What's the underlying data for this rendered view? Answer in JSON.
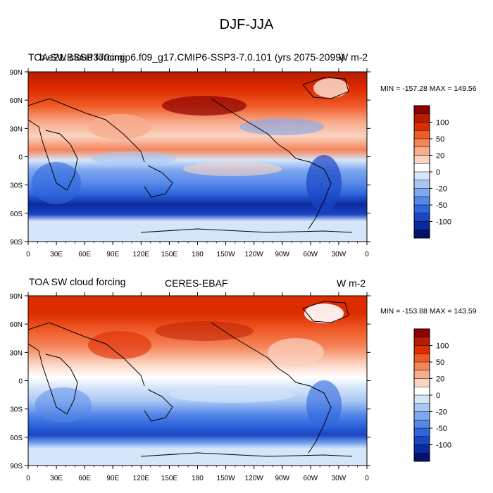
{
  "figure": {
    "title": "DJF-JJA"
  },
  "panels": [
    {
      "left_title": "TOA SW cloud forcing",
      "center_title": "b.e21.BSSP370cmip6.f09_g17.CMIP6-SSP3-7.0.101 (yrs 2075-2099)",
      "right_title": "W m-2",
      "minmax": "MIN = -157.28 MAX = 149.56"
    },
    {
      "left_title": "TOA SW cloud forcing",
      "center_title": "CERES-EBAF",
      "right_title": "W m-2",
      "minmax": "MIN = -153.88 MAX = 143.59"
    }
  ],
  "axes": {
    "lon_labels": [
      "0",
      "30E",
      "60E",
      "90E",
      "120E",
      "150E",
      "180",
      "150W",
      "120W",
      "90W",
      "60W",
      "30W",
      "0"
    ],
    "lat_labels": [
      "90N",
      "60N",
      "30N",
      "0",
      "30S",
      "60S",
      "90S"
    ]
  },
  "colorbar": {
    "tick_labels": [
      "100",
      "50",
      "20",
      "0",
      "-20",
      "-50",
      "-100"
    ],
    "colors": [
      "#8b0000",
      "#b71c00",
      "#dd2c00",
      "#ef5a26",
      "#f4855b",
      "#f8ad8e",
      "#fbd3c1",
      "#ffffff",
      "#d6e6fa",
      "#a9c7f4",
      "#7ea8ef",
      "#5587e8",
      "#2f66dc",
      "#1a46c4",
      "#0b2a9e",
      "#03126b"
    ]
  }
}
